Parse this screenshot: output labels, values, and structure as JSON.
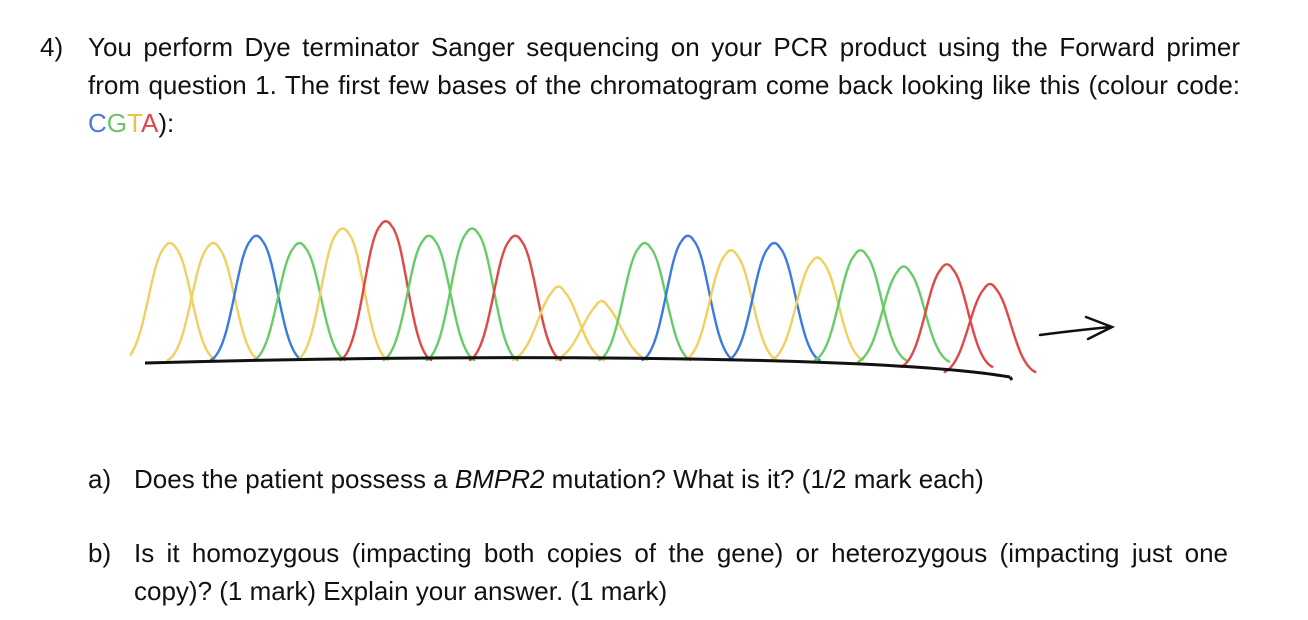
{
  "question": {
    "number": "4)",
    "text": "You perform Dye terminator Sanger sequencing on your PCR product using the Forward primer from question 1. The first few bases of the chromatogram come back looking like this (colour code: ",
    "colour_letters": [
      {
        "letter": "C",
        "color": "#4a7bd8"
      },
      {
        "letter": "G",
        "color": "#6cc46a"
      },
      {
        "letter": "T",
        "color": "#e8c24a"
      },
      {
        "letter": "A",
        "color": "#e04646"
      }
    ],
    "text_end": "):"
  },
  "colors": {
    "C": "#3b7be0",
    "G": "#66cc66",
    "T": "#f0d060",
    "A": "#e04848",
    "baseline": "#111111"
  },
  "chromatogram_peaks": [
    "T",
    "T",
    "C",
    "G",
    "T",
    "A",
    "G",
    "G",
    "A",
    "T",
    "T",
    "G",
    "C",
    "T",
    "C",
    "T",
    "G",
    "G",
    "A",
    "A"
  ],
  "part_a": {
    "label": "a)",
    "text_before": "Does the patient possess a ",
    "gene": "BMPR2",
    "text_after": " mutation? What is it? (1/2 mark each)"
  },
  "part_b": {
    "label": "b)",
    "text": "Is it homozygous (impacting both copies of the gene) or heterozygous (impacting just one copy)? (1 mark) Explain your answer. (1 mark)"
  }
}
